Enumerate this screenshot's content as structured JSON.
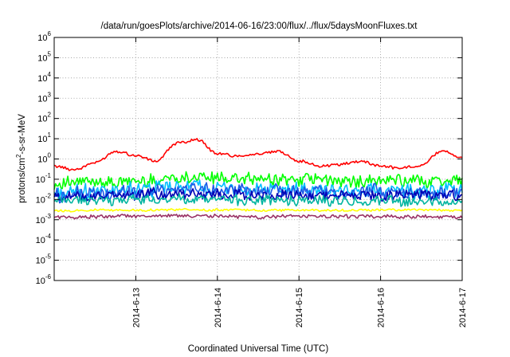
{
  "chart_data": {
    "type": "line",
    "title": "/data/run/goesPlots/archive/2014-06-16/23:00/flux/../flux/5daysMoonFluxes.txt",
    "xlabel": "Coordinated Universal Time (UTC)",
    "ylabel": "protons/cm²-s-sr-MeV",
    "ylabel_parts": {
      "pre": "protons/cm",
      "sup": "2",
      "post": "-s-sr-MeV"
    },
    "y_scale": "log",
    "ylim": [
      1e-06,
      1000000.0
    ],
    "xlim": [
      "2014-06-12",
      "2014-06-17"
    ],
    "x_ticks": [
      "2014-6-13",
      "2014-6-14",
      "2014-6-15",
      "2014-6-16",
      "2014-6-17"
    ],
    "y_ticks": [
      {
        "base": "10",
        "exp": "-6"
      },
      {
        "base": "10",
        "exp": "-5"
      },
      {
        "base": "10",
        "exp": "-4"
      },
      {
        "base": "10",
        "exp": "-3"
      },
      {
        "base": "10",
        "exp": "-2"
      },
      {
        "base": "10",
        "exp": "-1"
      },
      {
        "base": "10",
        "exp": "0"
      },
      {
        "base": "10",
        "exp": "1"
      },
      {
        "base": "10",
        "exp": "2"
      },
      {
        "base": "10",
        "exp": "3"
      },
      {
        "base": "10",
        "exp": "4"
      },
      {
        "base": "10",
        "exp": "5"
      },
      {
        "base": "10",
        "exp": "6"
      }
    ],
    "grid": true,
    "legend": "none",
    "series": [
      {
        "color": "#ff0000",
        "x": [
          "2014-06-12 00:00",
          "2014-06-12 06:00",
          "2014-06-12 12:00",
          "2014-06-12 18:00",
          "2014-06-13 00:00",
          "2014-06-13 06:00",
          "2014-06-13 12:00",
          "2014-06-13 18:00",
          "2014-06-14 00:00",
          "2014-06-14 06:00",
          "2014-06-14 12:00",
          "2014-06-14 18:00",
          "2014-06-15 00:00",
          "2014-06-15 06:00",
          "2014-06-15 12:00",
          "2014-06-15 18:00",
          "2014-06-16 00:00",
          "2014-06-16 06:00",
          "2014-06-16 12:00",
          "2014-06-16 18:00",
          "2014-06-17 00:00"
        ],
        "y": [
          0.45,
          0.3,
          0.65,
          2.5,
          1.5,
          0.8,
          6,
          9,
          1.8,
          1.4,
          1.8,
          2.4,
          0.8,
          0.45,
          0.55,
          0.8,
          0.45,
          0.35,
          0.5,
          2.5,
          1.2
        ]
      },
      {
        "color": "#00ff00",
        "x": [
          "2014-06-12 00:00",
          "2014-06-12 12:00",
          "2014-06-13 00:00",
          "2014-06-13 12:00",
          "2014-06-14 00:00",
          "2014-06-14 12:00",
          "2014-06-15 00:00",
          "2014-06-15 12:00",
          "2014-06-16 00:00",
          "2014-06-16 12:00",
          "2014-06-17 00:00"
        ],
        "y": [
          0.06,
          0.07,
          0.08,
          0.12,
          0.11,
          0.09,
          0.1,
          0.08,
          0.09,
          0.08,
          0.08
        ]
      },
      {
        "color": "#00bfff",
        "x": [
          "2014-06-12 00:00",
          "2014-06-12 12:00",
          "2014-06-13 00:00",
          "2014-06-13 12:00",
          "2014-06-14 00:00",
          "2014-06-14 12:00",
          "2014-06-15 00:00",
          "2014-06-15 12:00",
          "2014-06-16 00:00",
          "2014-06-16 12:00",
          "2014-06-17 00:00"
        ],
        "y": [
          0.02,
          0.025,
          0.03,
          0.04,
          0.035,
          0.03,
          0.03,
          0.025,
          0.03,
          0.025,
          0.025
        ]
      },
      {
        "color": "#1e5ae6",
        "x": [
          "2014-06-12 00:00",
          "2014-06-12 12:00",
          "2014-06-13 00:00",
          "2014-06-13 12:00",
          "2014-06-14 00:00",
          "2014-06-14 12:00",
          "2014-06-15 00:00",
          "2014-06-15 12:00",
          "2014-06-16 00:00",
          "2014-06-16 12:00",
          "2014-06-17 00:00"
        ],
        "y": [
          0.015,
          0.02,
          0.025,
          0.035,
          0.03,
          0.025,
          0.025,
          0.02,
          0.025,
          0.02,
          0.02
        ]
      },
      {
        "color": "#0000b4",
        "x": [
          "2014-06-12 00:00",
          "2014-06-12 12:00",
          "2014-06-13 00:00",
          "2014-06-13 12:00",
          "2014-06-14 00:00",
          "2014-06-14 12:00",
          "2014-06-15 00:00",
          "2014-06-15 12:00",
          "2014-06-16 00:00",
          "2014-06-16 12:00",
          "2014-06-17 00:00"
        ],
        "y": [
          0.012,
          0.015,
          0.018,
          0.02,
          0.018,
          0.016,
          0.016,
          0.015,
          0.016,
          0.015,
          0.014
        ]
      },
      {
        "color": "#00b4a0",
        "x": [
          "2014-06-12 00:00",
          "2014-06-12 12:00",
          "2014-06-13 00:00",
          "2014-06-13 12:00",
          "2014-06-14 00:00",
          "2014-06-14 12:00",
          "2014-06-15 00:00",
          "2014-06-15 12:00",
          "2014-06-16 00:00",
          "2014-06-16 12:00",
          "2014-06-17 00:00"
        ],
        "y": [
          0.008,
          0.009,
          0.01,
          0.011,
          0.01,
          0.009,
          0.009,
          0.008,
          0.009,
          0.008,
          0.008
        ]
      },
      {
        "color": "#ffff00",
        "x": [
          "2014-06-12 00:00",
          "2014-06-12 12:00",
          "2014-06-13 00:00",
          "2014-06-13 12:00",
          "2014-06-14 00:00",
          "2014-06-14 12:00",
          "2014-06-15 00:00",
          "2014-06-15 12:00",
          "2014-06-16 00:00",
          "2014-06-16 12:00",
          "2014-06-17 00:00"
        ],
        "y": [
          0.0028,
          0.003,
          0.003,
          0.0031,
          0.003,
          0.003,
          0.003,
          0.0029,
          0.003,
          0.003,
          0.0029
        ]
      },
      {
        "color": "#993366",
        "x": [
          "2014-06-12 00:00",
          "2014-06-12 12:00",
          "2014-06-13 00:00",
          "2014-06-13 12:00",
          "2014-06-14 00:00",
          "2014-06-14 12:00",
          "2014-06-15 00:00",
          "2014-06-15 12:00",
          "2014-06-16 00:00",
          "2014-06-16 12:00",
          "2014-06-17 00:00"
        ],
        "y": [
          0.0013,
          0.0014,
          0.0015,
          0.0016,
          0.0015,
          0.0014,
          0.0015,
          0.0014,
          0.0015,
          0.0014,
          0.0014
        ]
      }
    ]
  }
}
